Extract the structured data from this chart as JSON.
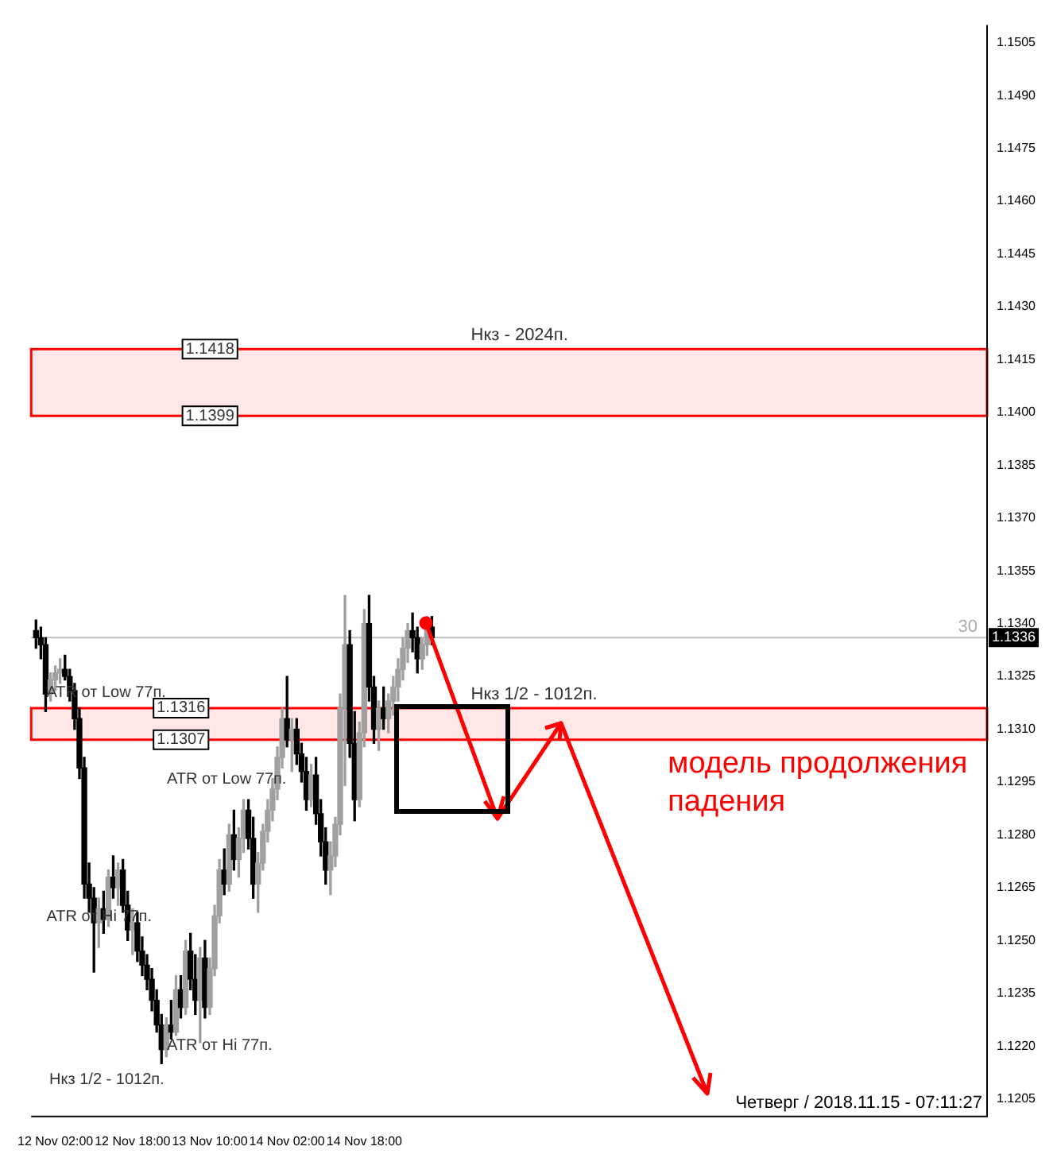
{
  "chart_data": {
    "type": "candlestick",
    "x": [
      "2018-11-11T22:00",
      "2018-11-11T23:00",
      "2018-11-12T00:00",
      "2018-11-12T01:00",
      "2018-11-12T02:00",
      "2018-11-12T03:00",
      "2018-11-12T04:00",
      "2018-11-12T05:00",
      "2018-11-12T06:00",
      "2018-11-12T07:00",
      "2018-11-12T08:00",
      "2018-11-12T09:00",
      "2018-11-12T10:00",
      "2018-11-12T11:00",
      "2018-11-12T12:00",
      "2018-11-12T13:00",
      "2018-11-12T14:00",
      "2018-11-12T15:00",
      "2018-11-12T16:00",
      "2018-11-12T17:00",
      "2018-11-12T18:00",
      "2018-11-12T19:00",
      "2018-11-12T20:00",
      "2018-11-12T21:00",
      "2018-11-12T22:00",
      "2018-11-12T23:00",
      "2018-11-13T00:00",
      "2018-11-13T01:00",
      "2018-11-13T02:00",
      "2018-11-13T03:00",
      "2018-11-13T04:00",
      "2018-11-13T05:00",
      "2018-11-13T06:00",
      "2018-11-13T07:00",
      "2018-11-13T08:00",
      "2018-11-13T09:00",
      "2018-11-13T10:00",
      "2018-11-13T11:00",
      "2018-11-13T12:00",
      "2018-11-13T13:00",
      "2018-11-13T14:00",
      "2018-11-13T15:00",
      "2018-11-13T16:00",
      "2018-11-13T17:00",
      "2018-11-13T18:00",
      "2018-11-13T19:00",
      "2018-11-13T20:00",
      "2018-11-13T21:00",
      "2018-11-13T22:00",
      "2018-11-13T23:00",
      "2018-11-14T00:00",
      "2018-11-14T01:00",
      "2018-11-14T02:00",
      "2018-11-14T03:00",
      "2018-11-14T04:00",
      "2018-11-14T05:00",
      "2018-11-14T06:00",
      "2018-11-14T07:00",
      "2018-11-14T08:00",
      "2018-11-14T09:00",
      "2018-11-14T10:00",
      "2018-11-14T11:00",
      "2018-11-14T12:00",
      "2018-11-14T13:00",
      "2018-11-14T14:00",
      "2018-11-14T15:00",
      "2018-11-14T16:00",
      "2018-11-14T17:00",
      "2018-11-14T18:00",
      "2018-11-14T19:00",
      "2018-11-14T20:00",
      "2018-11-14T21:00",
      "2018-11-14T22:00",
      "2018-11-14T23:00",
      "2018-11-15T00:00",
      "2018-11-15T01:00",
      "2018-11-15T02:00",
      "2018-11-15T03:00",
      "2018-11-15T04:00",
      "2018-11-15T05:00",
      "2018-11-15T06:00",
      "2018-11-15T07:00",
      "2018-11-15T08:00"
    ],
    "ohlc": [
      [
        1.1338,
        1.1341,
        1.1333,
        1.1336
      ],
      [
        1.1336,
        1.1339,
        1.133,
        1.1334
      ],
      [
        1.1334,
        1.1336,
        1.1315,
        1.132
      ],
      [
        1.132,
        1.1326,
        1.1318,
        1.1324
      ],
      [
        1.1324,
        1.1328,
        1.1321,
        1.1326
      ],
      [
        1.1326,
        1.133,
        1.1323,
        1.1327
      ],
      [
        1.1327,
        1.1331,
        1.1324,
        1.1325
      ],
      [
        1.1325,
        1.1327,
        1.1318,
        1.1321
      ],
      [
        1.1321,
        1.1323,
        1.131,
        1.1313
      ],
      [
        1.1313,
        1.1316,
        1.1296,
        1.1299
      ],
      [
        1.1299,
        1.1302,
        1.1262,
        1.1266
      ],
      [
        1.1266,
        1.1272,
        1.1258,
        1.1262
      ],
      [
        1.1262,
        1.1265,
        1.1241,
        1.1255
      ],
      [
        1.1255,
        1.1262,
        1.1248,
        1.1259
      ],
      [
        1.1259,
        1.1264,
        1.1252,
        1.1256
      ],
      [
        1.1256,
        1.127,
        1.1254,
        1.1268
      ],
      [
        1.1268,
        1.1274,
        1.1262,
        1.1265
      ],
      [
        1.1265,
        1.1272,
        1.126,
        1.127
      ],
      [
        1.127,
        1.1273,
        1.1258,
        1.126
      ],
      [
        1.126,
        1.1264,
        1.125,
        1.1253
      ],
      [
        1.1253,
        1.1259,
        1.1246,
        1.1255
      ],
      [
        1.1255,
        1.1258,
        1.1244,
        1.1247
      ],
      [
        1.1247,
        1.1251,
        1.124,
        1.1243
      ],
      [
        1.1243,
        1.1246,
        1.1236,
        1.1239
      ],
      [
        1.1239,
        1.1242,
        1.123,
        1.1233
      ],
      [
        1.1233,
        1.1236,
        1.1224,
        1.1226
      ],
      [
        1.1226,
        1.1229,
        1.1215,
        1.1219
      ],
      [
        1.1219,
        1.1228,
        1.1217,
        1.1226
      ],
      [
        1.1226,
        1.1233,
        1.1222,
        1.1224
      ],
      [
        1.1224,
        1.124,
        1.1223,
        1.1236
      ],
      [
        1.1236,
        1.124,
        1.1228,
        1.1231
      ],
      [
        1.1231,
        1.125,
        1.1229,
        1.1247
      ],
      [
        1.1247,
        1.1252,
        1.1236,
        1.1239
      ],
      [
        1.1239,
        1.1246,
        1.1229,
        1.1233
      ],
      [
        1.1233,
        1.1248,
        1.1221,
        1.1245
      ],
      [
        1.1245,
        1.125,
        1.1228,
        1.1231
      ],
      [
        1.1231,
        1.1245,
        1.1229,
        1.1242
      ],
      [
        1.1242,
        1.126,
        1.124,
        1.1257
      ],
      [
        1.1257,
        1.1273,
        1.1255,
        1.127
      ],
      [
        1.127,
        1.1276,
        1.1263,
        1.1266
      ],
      [
        1.1266,
        1.1283,
        1.1264,
        1.128
      ],
      [
        1.128,
        1.1287,
        1.127,
        1.1273
      ],
      [
        1.1273,
        1.1282,
        1.1268,
        1.1279
      ],
      [
        1.1279,
        1.129,
        1.1275,
        1.1287
      ],
      [
        1.1287,
        1.129,
        1.1276,
        1.1279
      ],
      [
        1.1279,
        1.1285,
        1.1262,
        1.1266
      ],
      [
        1.1266,
        1.1275,
        1.1258,
        1.1272
      ],
      [
        1.1272,
        1.1283,
        1.127,
        1.1281
      ],
      [
        1.1281,
        1.129,
        1.1278,
        1.1287
      ],
      [
        1.1287,
        1.1296,
        1.1284,
        1.1293
      ],
      [
        1.1293,
        1.1305,
        1.129,
        1.1302
      ],
      [
        1.1302,
        1.1316,
        1.1299,
        1.1313
      ],
      [
        1.1313,
        1.1325,
        1.1305,
        1.1307
      ],
      [
        1.1307,
        1.1313,
        1.1298,
        1.131
      ],
      [
        1.131,
        1.1313,
        1.13,
        1.1303
      ],
      [
        1.1303,
        1.1306,
        1.1295,
        1.1298
      ],
      [
        1.1298,
        1.1302,
        1.1287,
        1.129
      ],
      [
        1.129,
        1.13,
        1.1288,
        1.1297
      ],
      [
        1.1297,
        1.1302,
        1.1283,
        1.1286
      ],
      [
        1.1286,
        1.129,
        1.1274,
        1.1278
      ],
      [
        1.1278,
        1.1282,
        1.1266,
        1.127
      ],
      [
        1.127,
        1.1278,
        1.1263,
        1.1274
      ],
      [
        1.1274,
        1.1285,
        1.1271,
        1.1283
      ],
      [
        1.1283,
        1.132,
        1.128,
        1.1316
      ],
      [
        1.1316,
        1.1348,
        1.1294,
        1.1334
      ],
      [
        1.1334,
        1.1338,
        1.1302,
        1.1306
      ],
      [
        1.1306,
        1.1315,
        1.1284,
        1.129
      ],
      [
        1.129,
        1.1312,
        1.1288,
        1.1309
      ],
      [
        1.1309,
        1.1344,
        1.1305,
        1.134
      ],
      [
        1.134,
        1.1348,
        1.1318,
        1.1322
      ],
      [
        1.1322,
        1.1325,
        1.1306,
        1.131
      ],
      [
        1.131,
        1.1318,
        1.1304,
        1.1316
      ],
      [
        1.1316,
        1.1322,
        1.131,
        1.1313
      ],
      [
        1.1313,
        1.132,
        1.1309,
        1.1318
      ],
      [
        1.1318,
        1.1325,
        1.1314,
        1.1322
      ],
      [
        1.1322,
        1.133,
        1.1318,
        1.1327
      ],
      [
        1.1327,
        1.1336,
        1.1324,
        1.1333
      ],
      [
        1.1333,
        1.134,
        1.1329,
        1.1338
      ],
      [
        1.1338,
        1.1343,
        1.1332,
        1.1336
      ],
      [
        1.1336,
        1.1339,
        1.1326,
        1.133
      ],
      [
        1.133,
        1.1336,
        1.1327,
        1.1334
      ],
      [
        1.1334,
        1.1342,
        1.1331,
        1.1339
      ],
      [
        1.1339,
        1.1342,
        1.1334,
        1.1336
      ]
    ],
    "colors": [
      "#000000",
      "#000000",
      "#000000",
      "#a0a0a0",
      "#a0a0a0",
      "#a0a0a0",
      "#000000",
      "#000000",
      "#000000",
      "#000000",
      "#000000",
      "#000000",
      "#000000",
      "#a0a0a0",
      "#000000",
      "#a0a0a0",
      "#000000",
      "#a0a0a0",
      "#000000",
      "#000000",
      "#a0a0a0",
      "#000000",
      "#000000",
      "#000000",
      "#000000",
      "#000000",
      "#000000",
      "#a0a0a0",
      "#000000",
      "#a0a0a0",
      "#000000",
      "#a0a0a0",
      "#000000",
      "#000000",
      "#a0a0a0",
      "#000000",
      "#a0a0a0",
      "#a0a0a0",
      "#a0a0a0",
      "#000000",
      "#a0a0a0",
      "#000000",
      "#a0a0a0",
      "#a0a0a0",
      "#000000",
      "#000000",
      "#a0a0a0",
      "#a0a0a0",
      "#a0a0a0",
      "#a0a0a0",
      "#a0a0a0",
      "#a0a0a0",
      "#000000",
      "#a0a0a0",
      "#000000",
      "#000000",
      "#000000",
      "#a0a0a0",
      "#000000",
      "#000000",
      "#000000",
      "#a0a0a0",
      "#a0a0a0",
      "#a0a0a0",
      "#a0a0a0",
      "#000000",
      "#000000",
      "#a0a0a0",
      "#a0a0a0",
      "#000000",
      "#000000",
      "#a0a0a0",
      "#000000",
      "#a0a0a0",
      "#a0a0a0",
      "#a0a0a0",
      "#a0a0a0",
      "#a0a0a0",
      "#000000",
      "#000000",
      "#a0a0a0",
      "#a0a0a0",
      "#000000"
    ],
    "xlim": [
      "2018-11-11T21:00",
      "2018-11-20T03:00"
    ],
    "xticks": [
      {
        "value": "2018-11-12T02:00",
        "label": "12 Nov 02:00"
      },
      {
        "value": "2018-11-12T18:00",
        "label": "12 Nov 18:00"
      },
      {
        "value": "2018-11-13T10:00",
        "label": "13 Nov 10:00"
      },
      {
        "value": "2018-11-14T02:00",
        "label": "14 Nov 02:00"
      },
      {
        "value": "2018-11-14T18:00",
        "label": "14 Nov 18:00"
      }
    ],
    "ylim": [
      1.12,
      1.151
    ],
    "yticks": [
      1.1205,
      {
        "value": 1.122,
        "label": "1.1220"
      },
      1.1235,
      {
        "value": 1.125,
        "label": "1.1250"
      },
      1.1265,
      {
        "value": 1.128,
        "label": "1.1280"
      },
      1.1295,
      {
        "value": 1.131,
        "label": "1.1310"
      },
      1.1325,
      {
        "value": 1.134,
        "label": "1.1340"
      },
      1.1355,
      {
        "value": 1.137,
        "label": "1.1370"
      },
      1.1385,
      {
        "value": 1.14,
        "label": "1.1400"
      },
      1.1415,
      {
        "value": 1.143,
        "label": "1.1430"
      },
      1.1445,
      {
        "value": 1.146,
        "label": "1.1460"
      },
      1.1475,
      {
        "value": 1.149,
        "label": "1.1490"
      },
      1.1505
    ],
    "ref_lines": [
      {
        "axis": "y",
        "value": 1.1336,
        "label": "1.1336",
        "color": "#c0c0c0"
      }
    ],
    "bands": [
      {
        "axis": "y",
        "from": 1.1399,
        "to": 1.1418,
        "label": "Нкз - 2024п.",
        "color": "#ff0000"
      },
      {
        "axis": "y",
        "from": 1.1307,
        "to": 1.1316,
        "label": "Нкз 1/2 - 1012п.",
        "color": "#ff0000"
      }
    ],
    "annotations": [
      "модель продолжения падения",
      "Четверг / 2018.11.15 - 07:11:27",
      "30",
      {
        "text": "1.1418",
        "x": "2018-11-13T05:00",
        "y": 1.1418
      },
      {
        "text": "1.1399",
        "x": "2018-11-13T05:00",
        "y": 1.1399
      },
      {
        "text": "1.1316",
        "x": "2018-11-12T23:00",
        "y": 1.1316
      },
      {
        "text": "1.1307",
        "x": "2018-11-12T23:00",
        "y": 1.1307
      },
      "ATR от Low 77п.",
      "ATR от Low 77п.",
      "ATR от Hi 77п.",
      "ATR от Hi 77п.",
      "Нкз 1/2 - 1012п."
    ],
    "grid": false,
    "legend": false
  }
}
